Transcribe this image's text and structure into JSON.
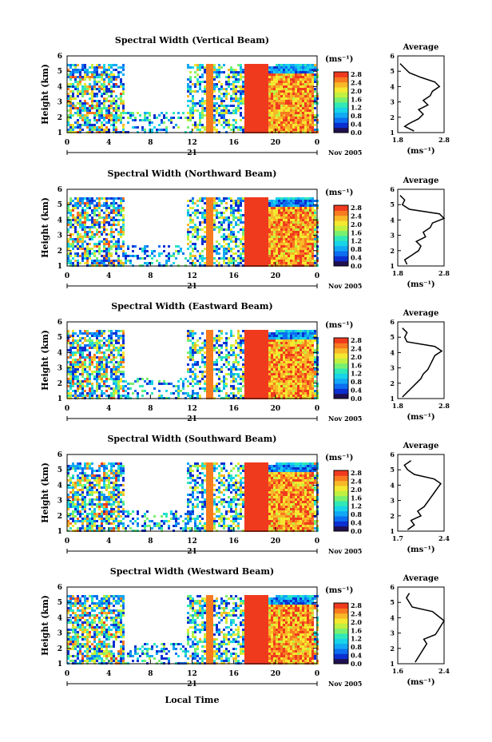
{
  "figure": {
    "xlabel_bottom": "Local Time",
    "date_label": "21",
    "month_label": "Nov 2005",
    "unit_label": "(ms⁻¹)",
    "avg_title": "Average",
    "colormap": [
      "#201050",
      "#0b2fd0",
      "#0c6ef0",
      "#12a8f4",
      "#18d4e8",
      "#30e8b8",
      "#78f070",
      "#c0f040",
      "#f4e830",
      "#f8b828",
      "#f87a20",
      "#f03a1e"
    ]
  },
  "chart_data": [
    {
      "type": "heatmap",
      "title": "Spectral Width (Vertical Beam)",
      "ylabel": "Height (km)",
      "x_ticks": [
        "0",
        "4",
        "8",
        "12",
        "16",
        "20",
        "0"
      ],
      "y_ticks": [
        "1",
        "2",
        "3",
        "4",
        "5",
        "6"
      ],
      "colorbar_ticks": [
        "2.8",
        "2.4",
        "2.0",
        "1.6",
        "1.2",
        "0.8",
        "0.4",
        "0.0"
      ],
      "avg_profile": {
        "xlabel": "(ms⁻¹)",
        "x_ticks": [
          "1.8",
          "2.8"
        ],
        "xlim": [
          1.8,
          2.8
        ],
        "height": [
          1.1,
          1.4,
          1.6,
          1.9,
          2.2,
          2.5,
          2.8,
          3.1,
          3.4,
          3.7,
          4.0,
          4.3,
          4.6,
          4.9,
          5.2,
          5.5
        ],
        "value": [
          2.15,
          1.95,
          2.05,
          2.25,
          2.35,
          2.25,
          2.45,
          2.35,
          2.5,
          2.55,
          2.7,
          2.6,
          2.3,
          2.05,
          1.95,
          1.85
        ]
      }
    },
    {
      "type": "heatmap",
      "title": "Spectral Width (Northward Beam)",
      "ylabel": "Height (km)",
      "x_ticks": [
        "0",
        "4",
        "8",
        "12",
        "16",
        "20",
        "0"
      ],
      "y_ticks": [
        "1",
        "2",
        "3",
        "4",
        "5",
        "6"
      ],
      "colorbar_ticks": [
        "2.8",
        "2.4",
        "2.0",
        "1.6",
        "1.2",
        "0.8",
        "0.4",
        "0.0"
      ],
      "avg_profile": {
        "xlabel": "(ms⁻¹)",
        "x_ticks": [
          "1.8",
          "2.8"
        ],
        "xlim": [
          1.8,
          2.8
        ],
        "height": [
          1.1,
          1.4,
          1.7,
          2.0,
          2.3,
          2.6,
          2.9,
          3.2,
          3.5,
          3.8,
          4.1,
          4.4,
          4.7,
          5.0,
          5.3,
          5.6
        ],
        "value": [
          2.0,
          1.95,
          2.1,
          2.25,
          2.3,
          2.2,
          2.4,
          2.35,
          2.5,
          2.55,
          2.8,
          2.7,
          2.05,
          1.9,
          1.95,
          1.85
        ]
      }
    },
    {
      "type": "heatmap",
      "title": "Spectral Width (Eastward Beam)",
      "ylabel": "Height (km)",
      "x_ticks": [
        "0",
        "4",
        "8",
        "12",
        "16",
        "20",
        "0"
      ],
      "y_ticks": [
        "1",
        "2",
        "3",
        "4",
        "5",
        "6"
      ],
      "colorbar_ticks": [
        "2.8",
        "2.4",
        "2.0",
        "1.6",
        "1.2",
        "0.8",
        "0.4",
        "0.0"
      ],
      "avg_profile": {
        "xlabel": "(ms⁻¹)",
        "x_ticks": [
          "1.8",
          "2.8"
        ],
        "xlim": [
          1.8,
          2.8
        ],
        "height": [
          1.1,
          1.4,
          1.7,
          2.0,
          2.3,
          2.6,
          2.9,
          3.2,
          3.5,
          3.8,
          4.1,
          4.4,
          4.7,
          5.0,
          5.3,
          5.6
        ],
        "value": [
          1.9,
          2.0,
          2.1,
          2.2,
          2.3,
          2.35,
          2.45,
          2.5,
          2.55,
          2.6,
          2.75,
          2.6,
          2.0,
          1.95,
          2.0,
          1.9
        ]
      }
    },
    {
      "type": "heatmap",
      "title": "Spectral Width (Southward Beam)",
      "ylabel": "Height (km)",
      "x_ticks": [
        "0",
        "4",
        "8",
        "12",
        "16",
        "20",
        "0"
      ],
      "y_ticks": [
        "1",
        "2",
        "3",
        "4",
        "5",
        "6"
      ],
      "colorbar_ticks": [
        "2.8",
        "2.4",
        "2.0",
        "1.6",
        "1.2",
        "0.8",
        "0.4",
        "0.0"
      ],
      "avg_profile": {
        "xlabel": "(ms⁻¹)",
        "x_ticks": [
          "1.7",
          "2.4"
        ],
        "xlim": [
          1.7,
          2.4
        ],
        "height": [
          1.1,
          1.4,
          1.7,
          2.0,
          2.3,
          2.6,
          2.9,
          3.2,
          3.5,
          3.8,
          4.1,
          4.4,
          4.7,
          5.0,
          5.3,
          5.6
        ],
        "value": [
          1.85,
          1.95,
          1.9,
          2.05,
          2.0,
          2.1,
          2.15,
          2.2,
          2.25,
          2.3,
          2.35,
          2.25,
          1.95,
          1.85,
          1.8,
          1.9
        ]
      }
    },
    {
      "type": "heatmap",
      "title": "Spectral Width (Westward Beam)",
      "ylabel": "Height (km)",
      "x_ticks": [
        "0",
        "4",
        "8",
        "12",
        "16",
        "20",
        "0"
      ],
      "y_ticks": [
        "1",
        "2",
        "3",
        "4",
        "5",
        "6"
      ],
      "colorbar_ticks": [
        "2.8",
        "2.4",
        "2.0",
        "1.6",
        "1.2",
        "0.8",
        "0.4",
        "0.0"
      ],
      "avg_profile": {
        "xlabel": "(ms⁻¹)",
        "x_ticks": [
          "1.6",
          "2.4"
        ],
        "xlim": [
          1.6,
          2.4
        ],
        "height": [
          1.1,
          1.4,
          1.7,
          2.0,
          2.3,
          2.6,
          2.9,
          3.2,
          3.5,
          3.8,
          4.1,
          4.4,
          4.7,
          5.0,
          5.3,
          5.6
        ],
        "value": [
          1.9,
          1.95,
          2.0,
          2.05,
          2.1,
          2.05,
          2.25,
          2.3,
          2.35,
          2.4,
          2.3,
          2.2,
          1.85,
          1.8,
          1.75,
          1.8
        ]
      }
    }
  ]
}
